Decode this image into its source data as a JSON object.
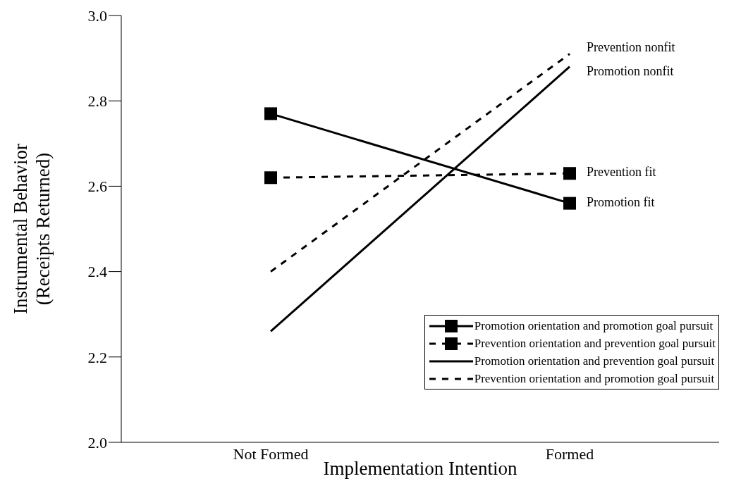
{
  "chart_data": {
    "type": "line",
    "xlabel": "Implementation Intention",
    "ylabel": "Instrumental Behavior\n(Receipts Returned)",
    "categories": [
      "Not Formed",
      "Formed"
    ],
    "series": [
      {
        "name": "Promotion orientation and promotion goal pursuit",
        "color": "#000000",
        "values": [
          2.77,
          2.56
        ],
        "marker": "square",
        "line_style": "solid"
      },
      {
        "name": "Prevention orientation and prevention goal pursuit",
        "color": "#000000",
        "values": [
          2.62,
          2.63
        ],
        "marker": "square",
        "line_style": "dashed"
      },
      {
        "name": "Promotion orientation and prevention goal pursuit",
        "color": "#000000",
        "values": [
          2.26,
          2.88
        ],
        "marker": "none",
        "line_style": "solid"
      },
      {
        "name": "Prevention orientation and promotion goal pursuit",
        "color": "#000000",
        "values": [
          2.4,
          2.91
        ],
        "marker": "none",
        "line_style": "dashed"
      }
    ],
    "ylim": [
      2,
      3
    ],
    "yticks": [
      {
        "value": 2,
        "label": "2.0"
      },
      2.2,
      2.4,
      2.6,
      2.8,
      {
        "value": 3,
        "label": "3.0"
      }
    ],
    "grid": false,
    "legend": "bottom right",
    "annotations": [
      {
        "text": "Prevention nonfit",
        "x": "Formed",
        "y": 2.91
      },
      {
        "text": "Promotion nonfit",
        "x": "Formed",
        "y": 2.88
      },
      {
        "text": "Prevention fit",
        "x": "Formed",
        "y": 2.63
      },
      {
        "text": "Promotion fit",
        "x": "Formed",
        "y": 2.56
      }
    ]
  }
}
